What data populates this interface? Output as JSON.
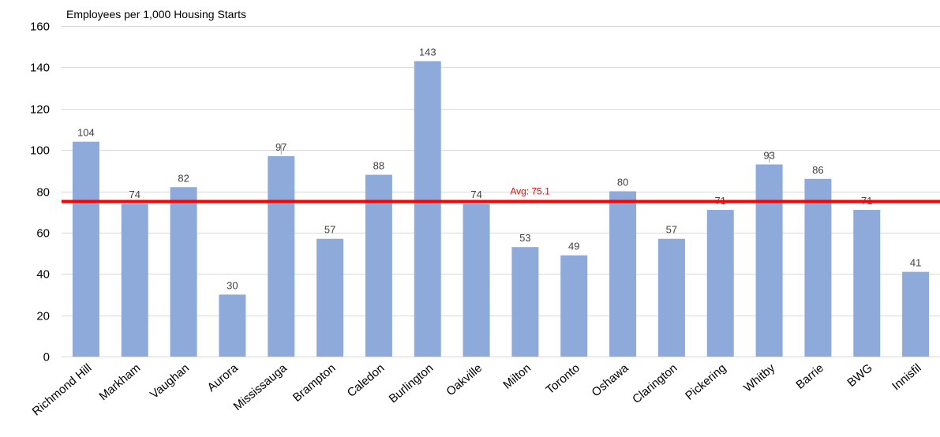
{
  "chart_data": {
    "type": "bar",
    "title": "Employees per 1,000 Housing Starts",
    "xlabel": "",
    "ylabel": "",
    "ylim": [
      0,
      160
    ],
    "yticks": [
      0,
      20,
      40,
      60,
      80,
      100,
      120,
      140,
      160
    ],
    "grid": true,
    "legend": "none",
    "categories": [
      "Richmond Hill",
      "Markham",
      "Vaughan",
      "Aurora",
      "Mississauga",
      "Brampton",
      "Caledon",
      "Burlington",
      "Oakville",
      "Milton",
      "Toronto",
      "Oshawa",
      "Clarington",
      "Pickering",
      "Whitby",
      "Barrie",
      "BWG",
      "Innisfil"
    ],
    "values": [
      104,
      74,
      82,
      30,
      97,
      57,
      88,
      143,
      74,
      53,
      49,
      80,
      57,
      71,
      93,
      86,
      71,
      41
    ],
    "data_labels": [
      "104",
      "74",
      "82",
      "30",
      "97",
      "57",
      "88",
      "143",
      "74",
      "53",
      "49",
      "80",
      "57",
      "71",
      "93",
      "86",
      "71",
      "41"
    ],
    "bar_color": "#8eaadb",
    "average": {
      "value": 75.1,
      "label": "Avg: 75.1",
      "color": "#ff0000"
    }
  }
}
